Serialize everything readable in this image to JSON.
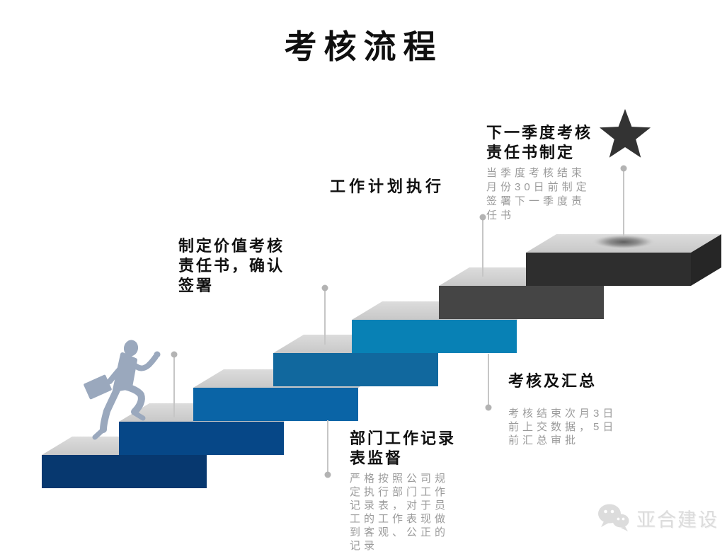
{
  "title": "考核流程",
  "colors": {
    "background": "#ffffff",
    "heading_text": "#101010",
    "desc_text": "#9b9b9b",
    "step_top_light": "#dcdcdc",
    "step_top_dark": "#c8c8c8",
    "step7_side": "#262626",
    "connector_line": "#c6c6c6",
    "connector_dot": "#b3b3b3",
    "star": "#333333",
    "person": "#9aa8bd",
    "logo": "#dcdcdc"
  },
  "staircase": {
    "steps": [
      {
        "id": "step-1",
        "color": "#07386f",
        "label": ""
      },
      {
        "id": "step-2",
        "color": "#064787",
        "label": "制定价值考核责任书，确认签署"
      },
      {
        "id": "step-3",
        "color": "#0a64a6",
        "label": "部门工作记录表监督"
      },
      {
        "id": "step-4",
        "color": "#11689e",
        "label": "工作计划执行"
      },
      {
        "id": "step-5",
        "color": "#0881b5",
        "label": "考核及汇总"
      },
      {
        "id": "step-6",
        "color": "#454545",
        "label": "下一季度考核责任书制定"
      },
      {
        "id": "step-7",
        "color": "#2e2e2e",
        "label": ""
      }
    ]
  },
  "annotations": {
    "step2": {
      "heading": "制定价值考核\n责任书，确认\n签署"
    },
    "step4": {
      "heading": "工作计划执行"
    },
    "step6": {
      "heading": "下一季度考核\n责任书制定",
      "desc": "当季度考核结束\n月份30日前制定\n签署下一季度责\n任书"
    },
    "step3": {
      "heading": "部门工作记录\n表监督",
      "desc": "严格按照公司规\n定执行部门工作\n记录表，对于员\n工的工作表现做\n到客观、公正的\n记录"
    },
    "step5": {
      "heading": "考核及汇总",
      "desc": "考核结束次月3日\n前上交数据，5日\n前汇总审批"
    }
  },
  "icons": {
    "star": "★",
    "wechat": "wechat-bubbles"
  },
  "logo": {
    "text": "亚合建设"
  }
}
